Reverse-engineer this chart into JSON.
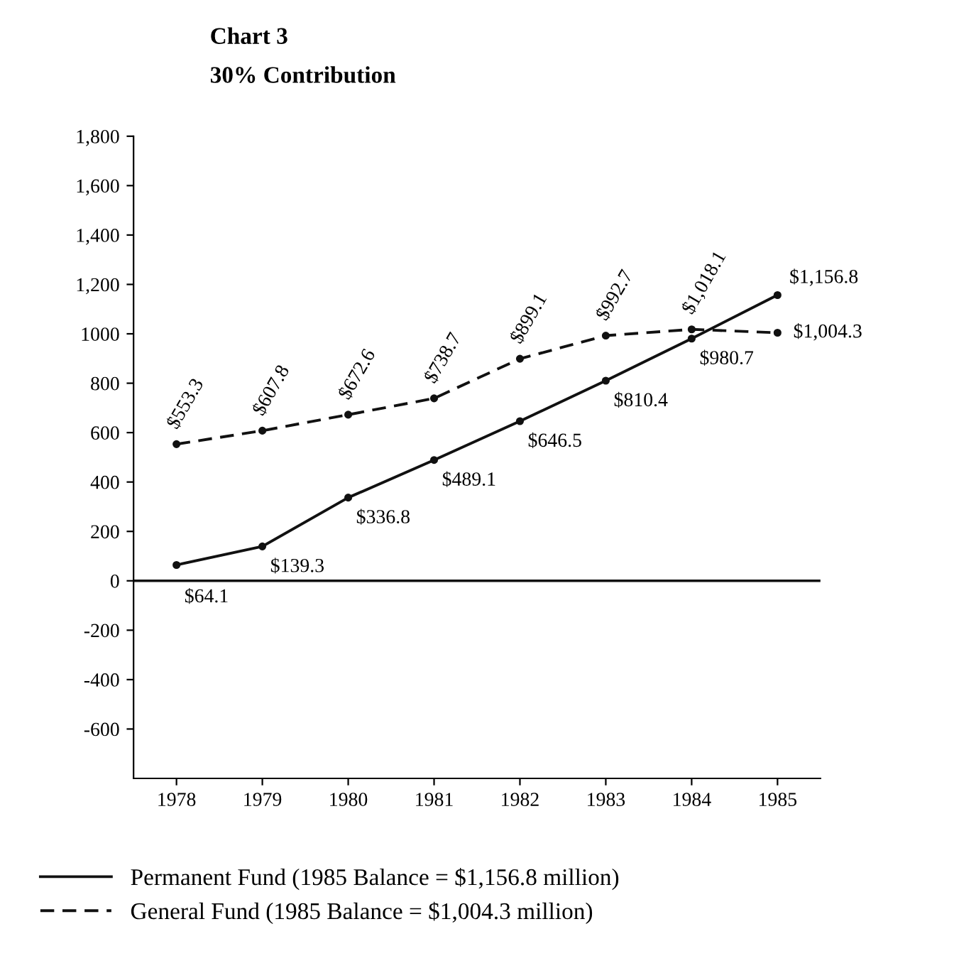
{
  "chart_data": {
    "type": "line",
    "title": "Chart 3",
    "subtitle": "30% Contribution",
    "categories": [
      "1978",
      "1979",
      "1980",
      "1981",
      "1982",
      "1983",
      "1984",
      "1985"
    ],
    "series": [
      {
        "name": "Permanent Fund (1985 Balance = $1,156.8 million)",
        "color": "#111111",
        "line_style": "solid",
        "values": [
          64.1,
          139.3,
          336.8,
          489.1,
          646.5,
          810.4,
          980.7,
          1156.8
        ],
        "value_labels": [
          "$64.1",
          "$139.3",
          "$336.8",
          "$489.1",
          "$646.5",
          "$810.4",
          "$980.7",
          "$1,156.8"
        ]
      },
      {
        "name": "General Fund (1985 Balance = $1,004.3 million)",
        "color": "#111111",
        "line_style": "dashed",
        "values": [
          553.3,
          607.8,
          672.6,
          738.7,
          899.1,
          992.7,
          1018.1,
          1004.3
        ],
        "value_labels": [
          "$553.3",
          "$607.8",
          "$672.6",
          "$738.7",
          "$899.1",
          "$992.7",
          "$1,018.1",
          "$1,004.3"
        ]
      }
    ],
    "ylim": [
      -800,
      1800
    ],
    "yticks": [
      {
        "value": -600,
        "label": "-600"
      },
      {
        "value": -400,
        "label": "-400"
      },
      {
        "value": -200,
        "label": "-200"
      },
      0,
      200,
      400,
      600,
      800,
      1000,
      {
        "value": 1200,
        "label": "1,200"
      },
      {
        "value": 1400,
        "label": "1,400"
      },
      {
        "value": 1600,
        "label": "1,600"
      },
      {
        "value": 1800,
        "label": "1,800"
      }
    ],
    "ref_lines": [
      {
        "axis": "y",
        "value": 0,
        "color": "#111111"
      }
    ],
    "grid": false,
    "legend": "bottom",
    "marker": "circle"
  }
}
